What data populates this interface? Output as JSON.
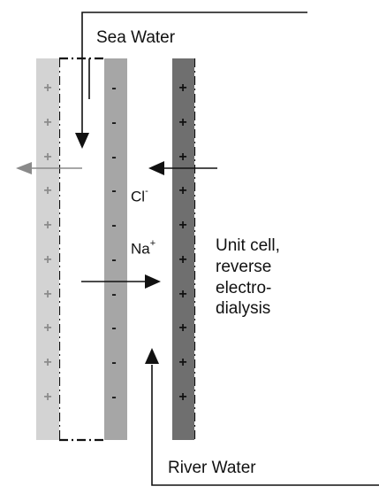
{
  "labels": {
    "sea_water": "Sea Water",
    "river_water": "River Water",
    "cell_line1": "Unit cell,",
    "cell_line2": "reverse",
    "cell_line3": "electro-",
    "cell_line4": "dialysis"
  },
  "ions": {
    "chloride_base": "Cl",
    "chloride_charge": "-",
    "sodium_base": "Na",
    "sodium_charge": "+"
  },
  "membranes": {
    "left_sign": "+",
    "middle_sign": "-",
    "right_sign": "+",
    "left_color": "#d3d3d3",
    "middle_color": "#a6a6a6",
    "right_color": "#6f6f6f",
    "left_sign_color": "#8c8c8c",
    "middle_sign_color": "#1a1a1a",
    "right_sign_color": "#111111"
  }
}
